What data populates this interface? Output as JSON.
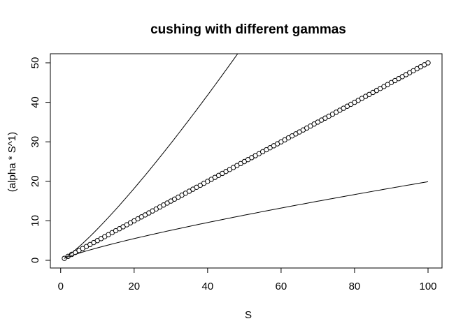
{
  "chart_data": {
    "type": "line",
    "title": "cushing with different gammas",
    "xlabel": "S",
    "ylabel": "(alpha * S^1)",
    "xlim": [
      0,
      100
    ],
    "ylim": [
      0,
      50
    ],
    "x_ticks": [
      0,
      20,
      40,
      60,
      80,
      100
    ],
    "y_ticks": [
      0,
      10,
      20,
      30,
      40,
      50
    ],
    "grid": false,
    "series": [
      {
        "style": "points",
        "x_range": [
          1,
          100
        ],
        "step": 1,
        "alpha": 0.5,
        "exponent": 1,
        "color": "#000000"
      },
      {
        "style": "line",
        "x_range": [
          1,
          100
        ],
        "step": 1,
        "alpha": 0.5,
        "exponent": 1.2,
        "color": "#000000"
      },
      {
        "style": "line",
        "x_range": [
          1,
          100
        ],
        "step": 1,
        "alpha": 0.5,
        "exponent": 0.8,
        "color": "#000000"
      }
    ]
  }
}
